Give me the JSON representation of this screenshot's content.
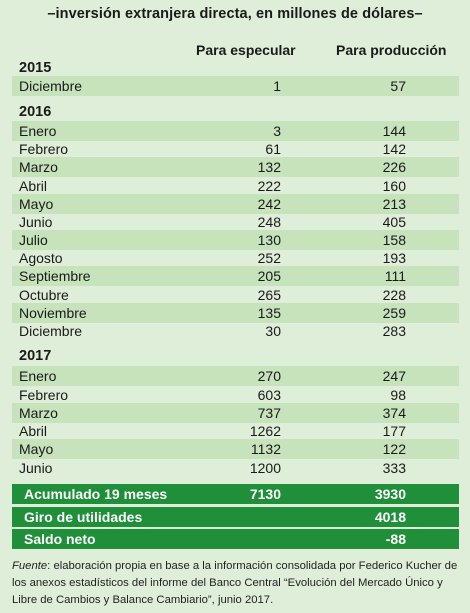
{
  "title": "–inversión extranjera directa, en millones de dólares–",
  "columns": {
    "speculate": "Para especular",
    "production": "Para producción"
  },
  "years": {
    "y2015": "2015",
    "y2016": "2016",
    "y2017": "2017"
  },
  "rows": [
    {
      "label": "Diciembre",
      "speculate": "1",
      "production": "57"
    },
    {
      "label": "Enero",
      "speculate": "3",
      "production": "144"
    },
    {
      "label": "Febrero",
      "speculate": "61",
      "production": "142"
    },
    {
      "label": "Marzo",
      "speculate": "132",
      "production": "226"
    },
    {
      "label": "Abril",
      "speculate": "222",
      "production": "160"
    },
    {
      "label": "Mayo",
      "speculate": "242",
      "production": "213"
    },
    {
      "label": "Junio",
      "speculate": "248",
      "production": "405"
    },
    {
      "label": "Julio",
      "speculate": "130",
      "production": "158"
    },
    {
      "label": "Agosto",
      "speculate": "252",
      "production": "193"
    },
    {
      "label": "Septiembre",
      "speculate": "205",
      "production": "111"
    },
    {
      "label": "Octubre",
      "speculate": "265",
      "production": "228"
    },
    {
      "label": "Noviembre",
      "speculate": "135",
      "production": "259"
    },
    {
      "label": "Diciembre",
      "speculate": "30",
      "production": "283"
    },
    {
      "label": "Enero",
      "speculate": "270",
      "production": "247"
    },
    {
      "label": "Febrero",
      "speculate": "603",
      "production": "98"
    },
    {
      "label": "Marzo",
      "speculate": "737",
      "production": "374"
    },
    {
      "label": "Abril",
      "speculate": "1262",
      "production": "177"
    },
    {
      "label": "Mayo",
      "speculate": "1132",
      "production": "122"
    },
    {
      "label": "Junio",
      "speculate": "1200",
      "production": "333"
    }
  ],
  "summary": {
    "accumulated_label": "Acumulado 19 meses",
    "accumulated_speculate": "7130",
    "accumulated_production": "3930",
    "profits_label": "Giro de utilidades",
    "profits_value": "4018",
    "net_label": "Saldo neto",
    "net_value": "-88"
  },
  "source": {
    "prefix": "Fuente",
    "text": ": elaboración propia en base a la información consolidada por Federico Kucher de los anexos estadísticos del informe del Banco Central “Evolución del Mercado Único y Libre de Cambios y Balance Cambiario”, junio 2017."
  },
  "colors": {
    "background": "#dfeed8",
    "stripe": "#c6e3bb",
    "summary_bar": "#1f8f3a"
  }
}
